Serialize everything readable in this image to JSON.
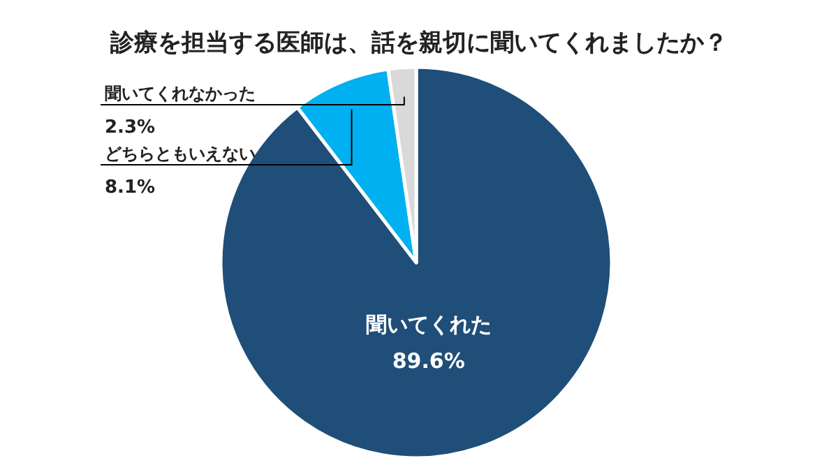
{
  "chart_data": {
    "type": "pie",
    "title": "診療を担当する医師は、話を親切に聞いてくれましたか？",
    "categories": [
      "聞いてくれた",
      "どちらともいえない",
      "聞いてくれなかった"
    ],
    "values": [
      89.6,
      8.1,
      2.3
    ],
    "value_labels": [
      "89.6%",
      "8.1%",
      "2.3%"
    ],
    "colors": [
      "#1f4e79",
      "#00b0f0",
      "#d9d9d9"
    ]
  }
}
